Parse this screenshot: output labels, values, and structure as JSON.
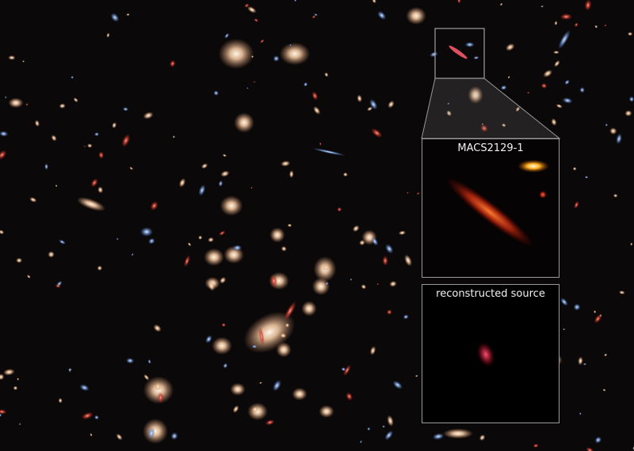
{
  "image": {
    "subject": "galaxy cluster deep field with lensed galaxy inset",
    "colors": {
      "background": "#0a0808",
      "frame": "#9a9a9a",
      "lensed_galaxy": "#d2402a",
      "cluster_galaxy": "#f0c7a0"
    }
  },
  "insets": [
    {
      "label": "MACS2129-1"
    },
    {
      "label": "reconstructed source"
    }
  ]
}
